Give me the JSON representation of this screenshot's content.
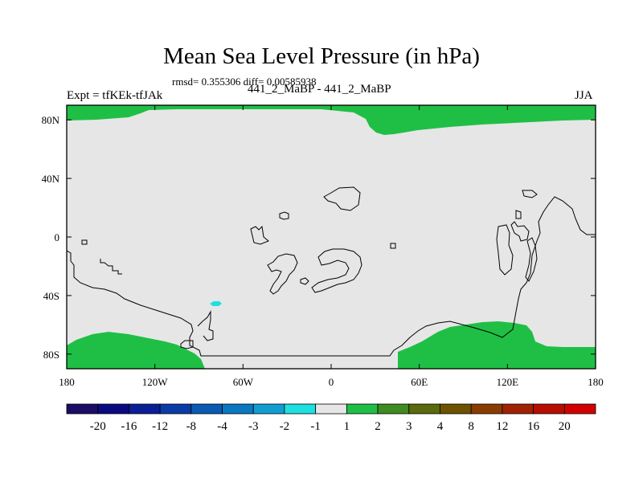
{
  "header": {
    "title": "Mean Sea Level Pressure (in hPa)",
    "stats": "rmsd= 0.355306 diff= 0.00585938",
    "left_label": "Expt = tfKEk-tfJAk",
    "center_label": "441_2_MaBP - 441_2_MaBP",
    "right_label": "JJA"
  },
  "chart_data": {
    "type": "heatmap",
    "title": "Mean Sea Level Pressure (in hPa)",
    "subtitle": "441_2_MaBP - 441_2_MaBP",
    "map_projection": "cylindrical equidistant (global)",
    "x_ticks": [
      "180",
      "120W",
      "60W",
      "0",
      "60E",
      "120E",
      "180"
    ],
    "x_tick_values": [
      -180,
      -120,
      -60,
      0,
      60,
      120,
      180
    ],
    "y_ticks": [
      "80N",
      "40N",
      "0",
      "40S",
      "80S"
    ],
    "y_tick_values": [
      80,
      40,
      0,
      -40,
      -80
    ],
    "xlim": [
      -180,
      180
    ],
    "ylim": [
      -90,
      90
    ],
    "dominant_field": "-1 to 1",
    "field_regions": [
      {
        "area": "Arctic, 180-30E",
        "lat_range": [
          80,
          90
        ],
        "bin": "1 to 2",
        "color": "#1fbf45"
      },
      {
        "area": "Arctic, 30E-180",
        "lat_range": [
          72,
          90
        ],
        "bin": "1 to 2",
        "color": "#1fbf45"
      },
      {
        "area": "Antarctica, 180-80W",
        "lat_range": [
          -90,
          -73
        ],
        "bin": "1 to 2",
        "color": "#1fbf45"
      },
      {
        "area": "Antarctica, 50E-160E",
        "lat_range": [
          -90,
          -65
        ],
        "bin": "1 to 2",
        "color": "#1fbf45"
      },
      {
        "area": "South Pacific near 78W 46S",
        "lat_range": [
          -47,
          -45
        ],
        "bin": "-2 to -1",
        "color": "#1ee0e0"
      }
    ],
    "colorbar": {
      "levels": [
        "-20",
        "-16",
        "-12",
        "-8",
        "-4",
        "-3",
        "-2",
        "-1",
        "1",
        "2",
        "3",
        "4",
        "8",
        "12",
        "16",
        "20"
      ],
      "colors": [
        "#1c0c66",
        "#0a0a80",
        "#0a1e96",
        "#0a3ca8",
        "#0a5ab4",
        "#0a78c0",
        "#109ed2",
        "#1ee0e0",
        "#e6e6e6",
        "#1fbf45",
        "#3f8c22",
        "#5a6a0c",
        "#6e5200",
        "#8a3c00",
        "#a02200",
        "#b80e00",
        "#d20000"
      ]
    }
  }
}
